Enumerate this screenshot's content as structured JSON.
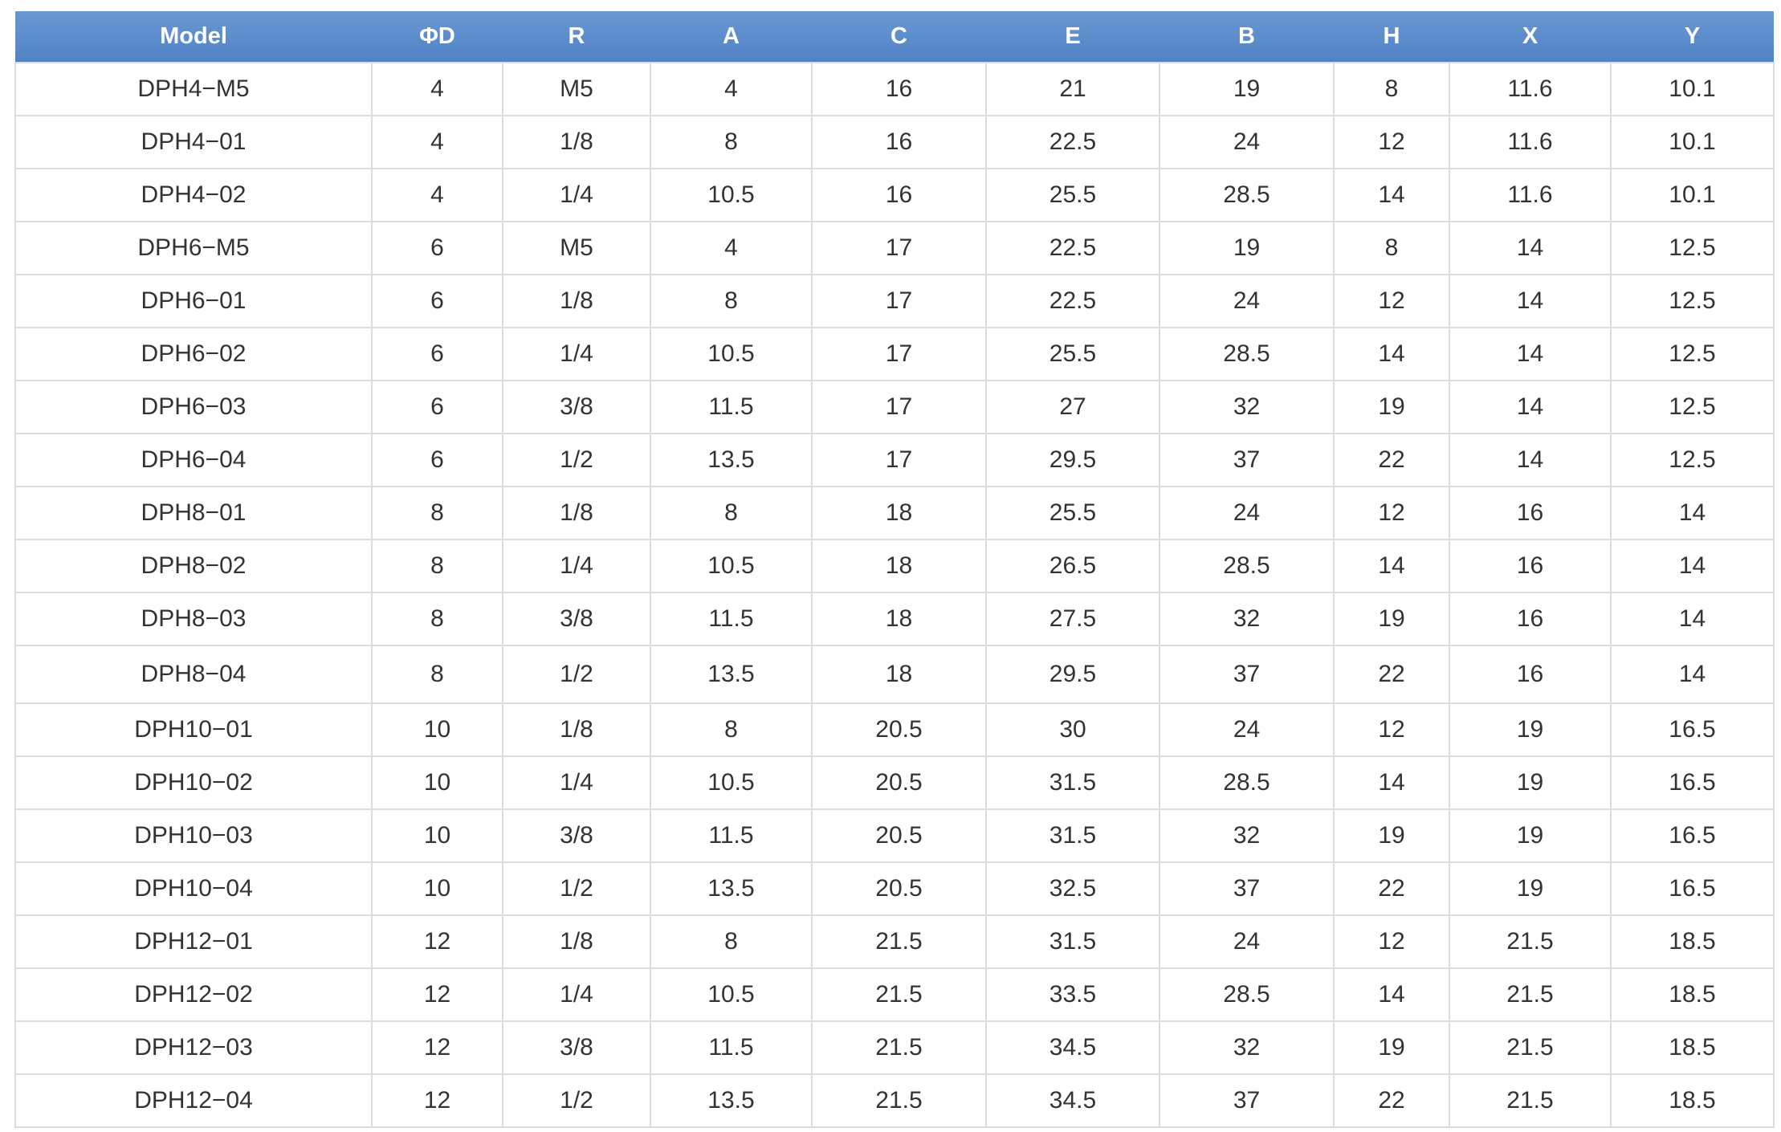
{
  "table": {
    "headers": [
      "Model",
      "ΦD",
      "R",
      "A",
      "C",
      "E",
      "B",
      "H",
      "X",
      "Y"
    ],
    "rows": [
      [
        "DPH4−M5",
        "4",
        "M5",
        "4",
        "16",
        "21",
        "19",
        "8",
        "11.6",
        "10.1"
      ],
      [
        "DPH4−01",
        "4",
        "1/8",
        "8",
        "16",
        "22.5",
        "24",
        "12",
        "11.6",
        "10.1"
      ],
      [
        "DPH4−02",
        "4",
        "1/4",
        "10.5",
        "16",
        "25.5",
        "28.5",
        "14",
        "11.6",
        "10.1"
      ],
      [
        "DPH6−M5",
        "6",
        "M5",
        "4",
        "17",
        "22.5",
        "19",
        "8",
        "14",
        "12.5"
      ],
      [
        "DPH6−01",
        "6",
        "1/8",
        "8",
        "17",
        "22.5",
        "24",
        "12",
        "14",
        "12.5"
      ],
      [
        "DPH6−02",
        "6",
        "1/4",
        "10.5",
        "17",
        "25.5",
        "28.5",
        "14",
        "14",
        "12.5"
      ],
      [
        "DPH6−03",
        "6",
        "3/8",
        "11.5",
        "17",
        "27",
        "32",
        "19",
        "14",
        "12.5"
      ],
      [
        "DPH6−04",
        "6",
        "1/2",
        "13.5",
        "17",
        "29.5",
        "37",
        "22",
        "14",
        "12.5"
      ],
      [
        "DPH8−01",
        "8",
        "1/8",
        "8",
        "18",
        "25.5",
        "24",
        "12",
        "16",
        "14"
      ],
      [
        "DPH8−02",
        "8",
        "1/4",
        "10.5",
        "18",
        "26.5",
        "28.5",
        "14",
        "16",
        "14"
      ],
      [
        "DPH8−03",
        "8",
        "3/8",
        "11.5",
        "18",
        "27.5",
        "32",
        "19",
        "16",
        "14"
      ],
      [
        "DPH8−04",
        "8",
        "1/2",
        "13.5",
        "18",
        "29.5",
        "37",
        "22",
        "16",
        "14"
      ],
      [
        "DPH10−01",
        "10",
        "1/8",
        "8",
        "20.5",
        "30",
        "24",
        "12",
        "19",
        "16.5"
      ],
      [
        "DPH10−02",
        "10",
        "1/4",
        "10.5",
        "20.5",
        "31.5",
        "28.5",
        "14",
        "19",
        "16.5"
      ],
      [
        "DPH10−03",
        "10",
        "3/8",
        "11.5",
        "20.5",
        "31.5",
        "32",
        "19",
        "19",
        "16.5"
      ],
      [
        "DPH10−04",
        "10",
        "1/2",
        "13.5",
        "20.5",
        "32.5",
        "37",
        "22",
        "19",
        "16.5"
      ],
      [
        "DPH12−01",
        "12",
        "1/8",
        "8",
        "21.5",
        "31.5",
        "24",
        "12",
        "21.5",
        "18.5"
      ],
      [
        "DPH12−02",
        "12",
        "1/4",
        "10.5",
        "21.5",
        "33.5",
        "28.5",
        "14",
        "21.5",
        "18.5"
      ],
      [
        "DPH12−03",
        "12",
        "3/8",
        "11.5",
        "21.5",
        "34.5",
        "32",
        "19",
        "21.5",
        "18.5"
      ],
      [
        "DPH12−04",
        "12",
        "1/2",
        "13.5",
        "21.5",
        "34.5",
        "37",
        "22",
        "21.5",
        "18.5"
      ]
    ]
  },
  "colors": {
    "header_bg_top": "#6a98d3",
    "header_bg_bottom": "#4f82c4",
    "header_text": "#ffffff",
    "cell_text": "#333333",
    "grid_line": "#dcdcdc"
  }
}
